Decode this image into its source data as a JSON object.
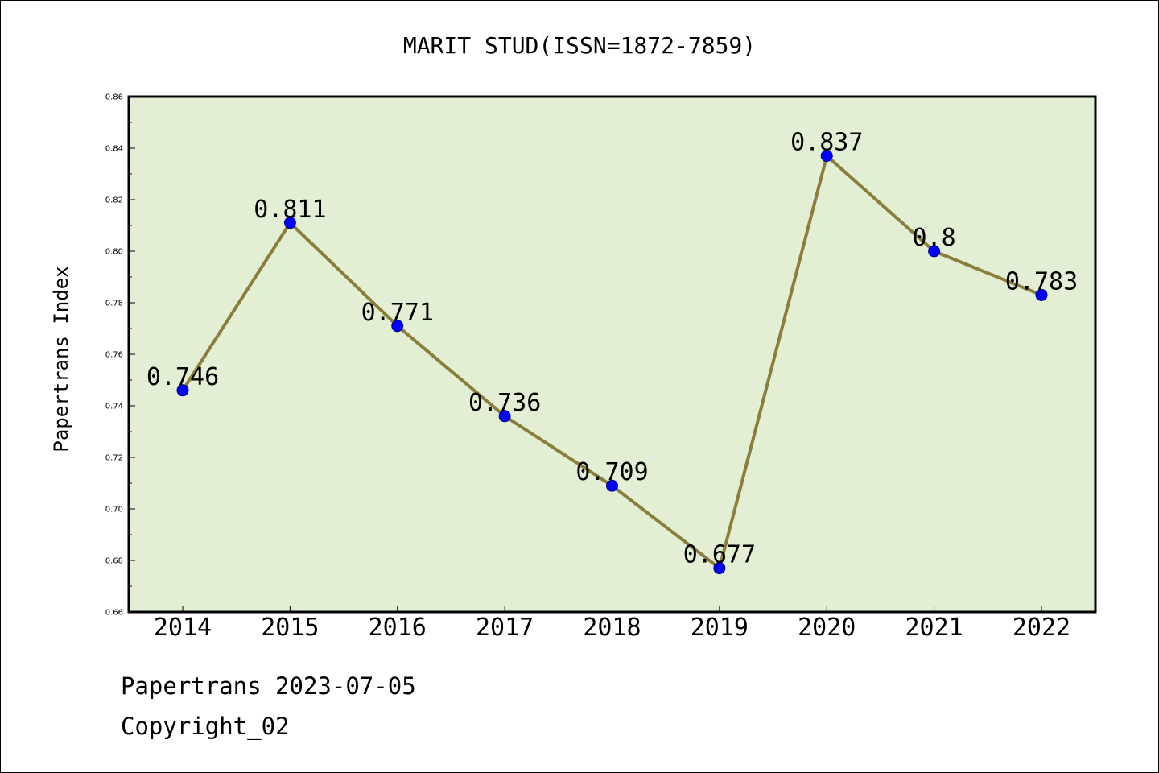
{
  "chart_data": {
    "type": "line",
    "title": "MARIT STUD(ISSN=1872-7859)",
    "ylabel": "Papertrans Index",
    "xlabel": "",
    "categories": [
      "2014",
      "2015",
      "2016",
      "2017",
      "2018",
      "2019",
      "2020",
      "2021",
      "2022"
    ],
    "series": [
      {
        "values": [
          0.746,
          0.811,
          0.771,
          0.736,
          0.709,
          0.677,
          0.837,
          0.8,
          0.783
        ]
      }
    ],
    "data_labels": [
      "0.746",
      "0.811",
      "0.771",
      "0.736",
      "0.709",
      "0.677",
      "0.837",
      "0.8",
      "0.783"
    ],
    "ylim": [
      0.66,
      0.86
    ],
    "yticks": [
      "0.66",
      "0.68",
      "0.70",
      "0.72",
      "0.74",
      "0.76",
      "0.78",
      "0.80",
      "0.82",
      "0.84",
      "0.86"
    ],
    "grid": false,
    "legend": "none",
    "colors": {
      "plot_background": "#e2efd5",
      "line": "#8b7d3a",
      "marker": "#0000ff"
    }
  },
  "footer": {
    "line1": "Papertrans 2023-07-05",
    "line2": "Copyright_02"
  }
}
